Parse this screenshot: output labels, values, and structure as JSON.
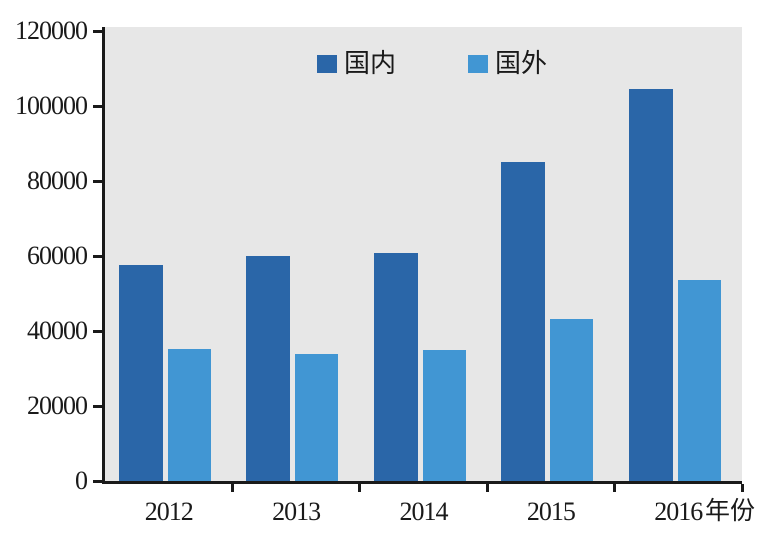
{
  "chart_data": {
    "type": "bar",
    "title": "",
    "categories": [
      "2012",
      "2013",
      "2014",
      "2015",
      "2016"
    ],
    "series": [
      {
        "name": "国内",
        "color": "#2A66A8",
        "values": [
          57600,
          60000,
          60800,
          85000,
          104500
        ]
      },
      {
        "name": "国外",
        "color": "#4196D3",
        "values": [
          35200,
          33900,
          34900,
          43200,
          53600
        ]
      }
    ],
    "xlabel": "年份",
    "ylabel": "",
    "ylim": [
      0,
      120000
    ],
    "ytick_step": 20000,
    "ytick_labels": [
      "0",
      "20000",
      "40000",
      "60000",
      "80000",
      "100000",
      "120000"
    ],
    "legend_position": "top-center-inside",
    "grid": false,
    "colors": {
      "plot_background": "#E7E7E7",
      "axis": "#1A1A1A",
      "text": "#1A1A1A"
    }
  }
}
